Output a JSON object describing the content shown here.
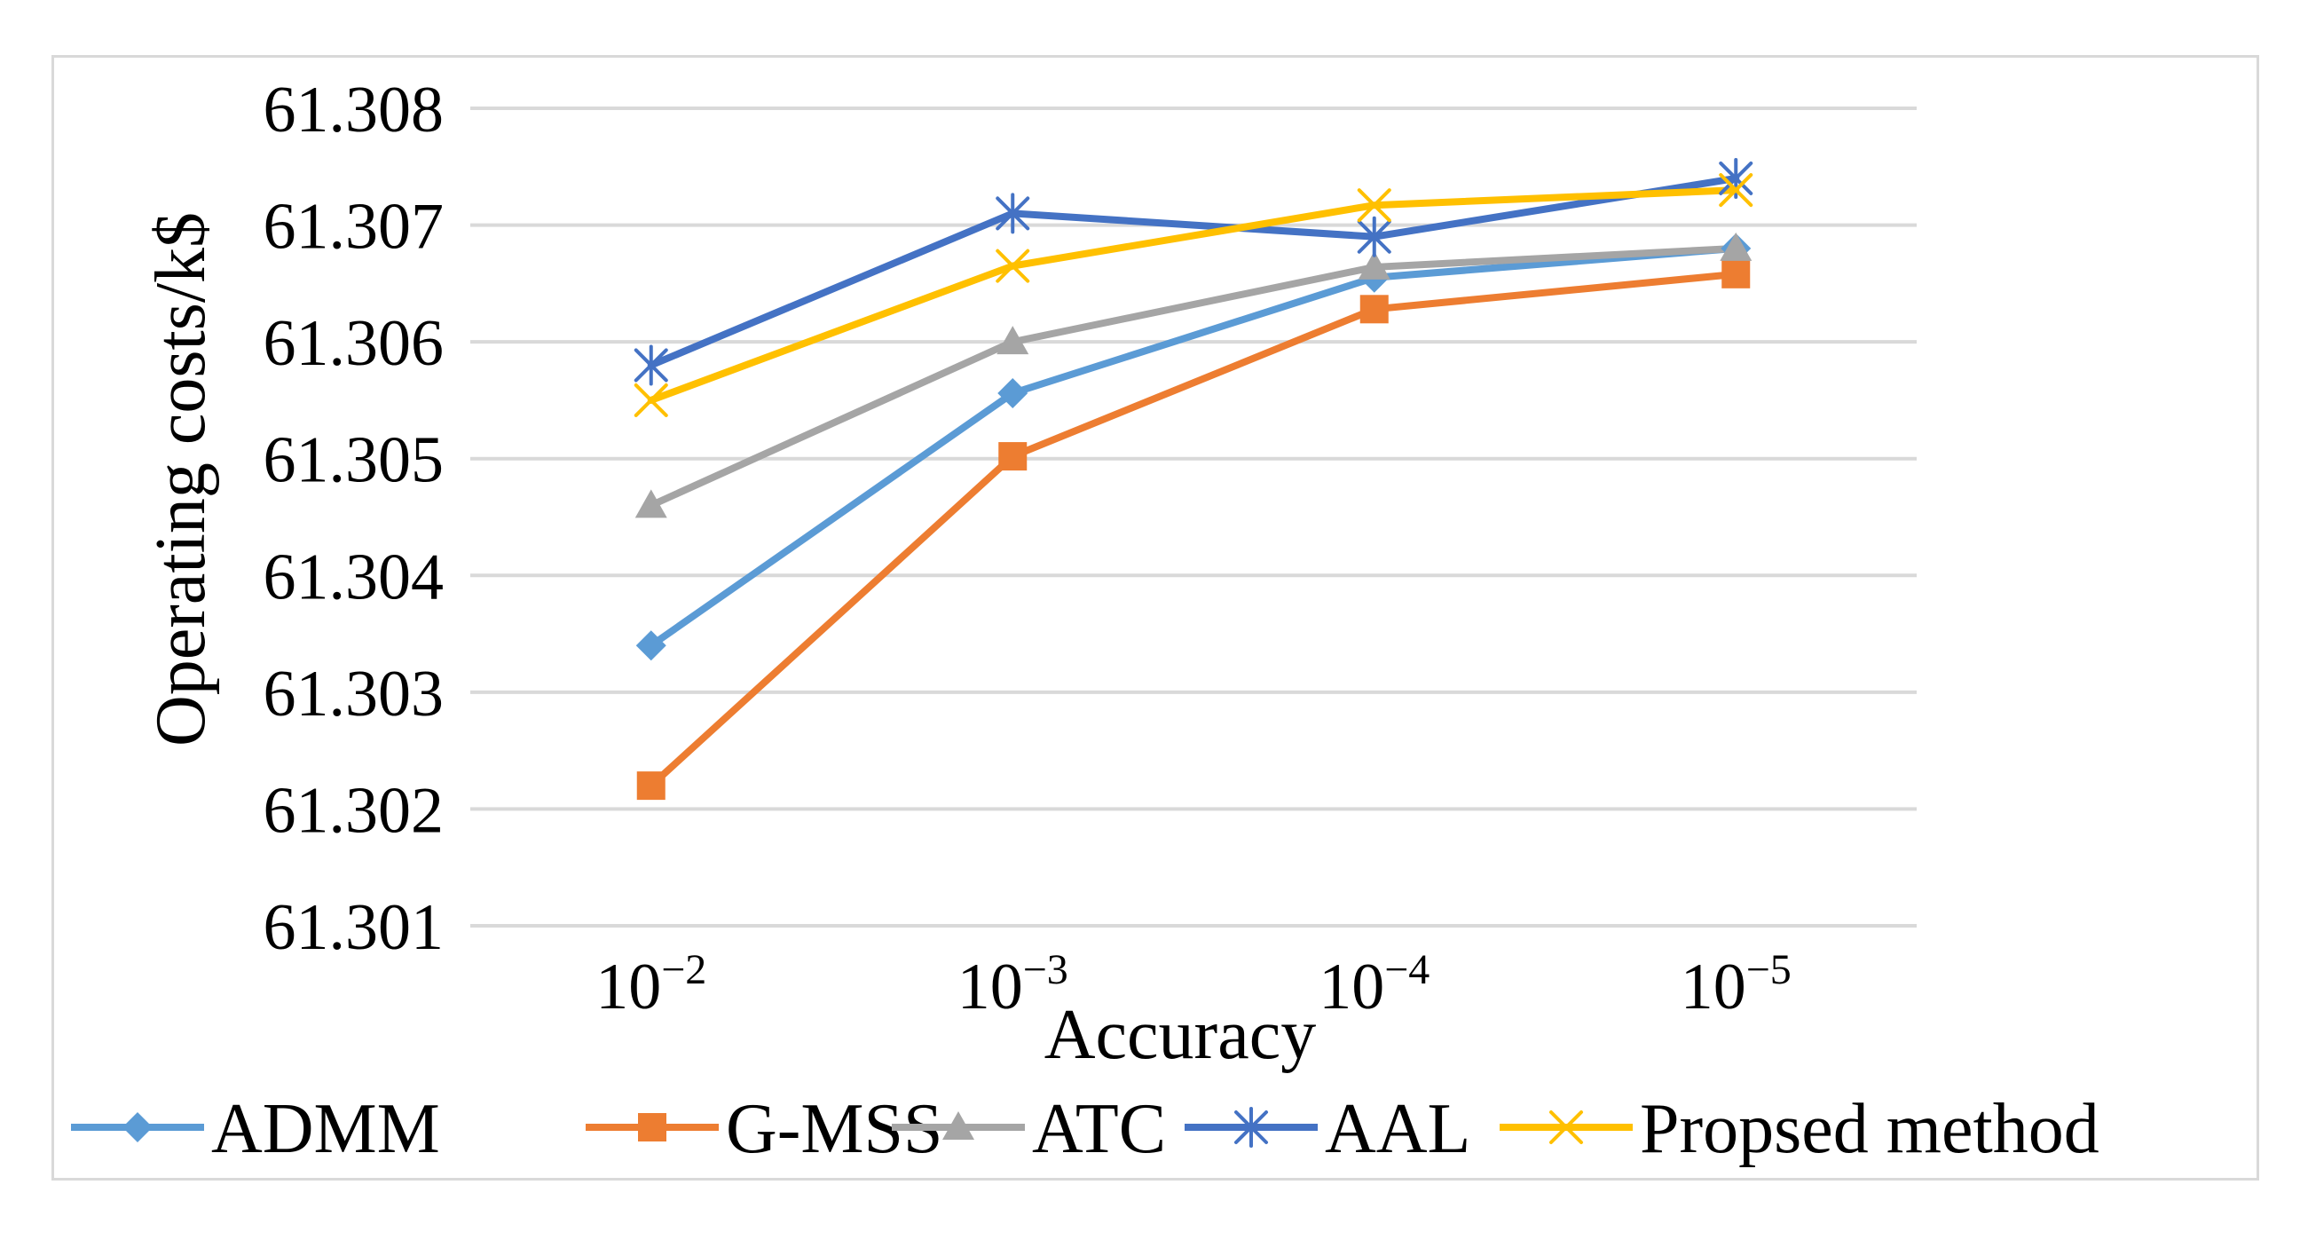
{
  "chart_data": {
    "type": "line",
    "title": "",
    "xlabel": "Accuracy",
    "ylabel": "Operating costs/k$",
    "categories": [
      {
        "base": "10",
        "exp": "−2"
      },
      {
        "base": "10",
        "exp": "−3"
      },
      {
        "base": "10",
        "exp": "−4"
      },
      {
        "base": "10",
        "exp": "−5"
      }
    ],
    "ylim": [
      61.301,
      61.308
    ],
    "yticks": [
      61.301,
      61.302,
      61.303,
      61.304,
      61.305,
      61.306,
      61.307,
      61.308
    ],
    "ytick_labels": [
      "61.301",
      "61.302",
      "61.303",
      "61.304",
      "61.305",
      "61.306",
      "61.307",
      "61.308"
    ],
    "grid": true,
    "legend_position": "bottom",
    "series": [
      {
        "name": "ADMM",
        "values": [
          61.3034,
          61.30556,
          61.30655,
          61.3068
        ],
        "color": "#5b9bd5",
        "marker": "diamond"
      },
      {
        "name": "G-MSS",
        "values": [
          61.3022,
          61.30502,
          61.30628,
          61.30658
        ],
        "color": "#ed7d31",
        "marker": "square"
      },
      {
        "name": "ATC",
        "values": [
          61.3046,
          61.306,
          61.30664,
          61.3068
        ],
        "color": "#a5a5a5",
        "marker": "triangle"
      },
      {
        "name": "AAL",
        "values": [
          61.3058,
          61.3071,
          61.3069,
          61.3074
        ],
        "color": "#4472c4",
        "marker": "star"
      },
      {
        "name": "Propsed method",
        "values": [
          61.3055,
          61.30665,
          61.30717,
          61.3073
        ],
        "color": "#ffc000",
        "marker": "x"
      }
    ]
  }
}
